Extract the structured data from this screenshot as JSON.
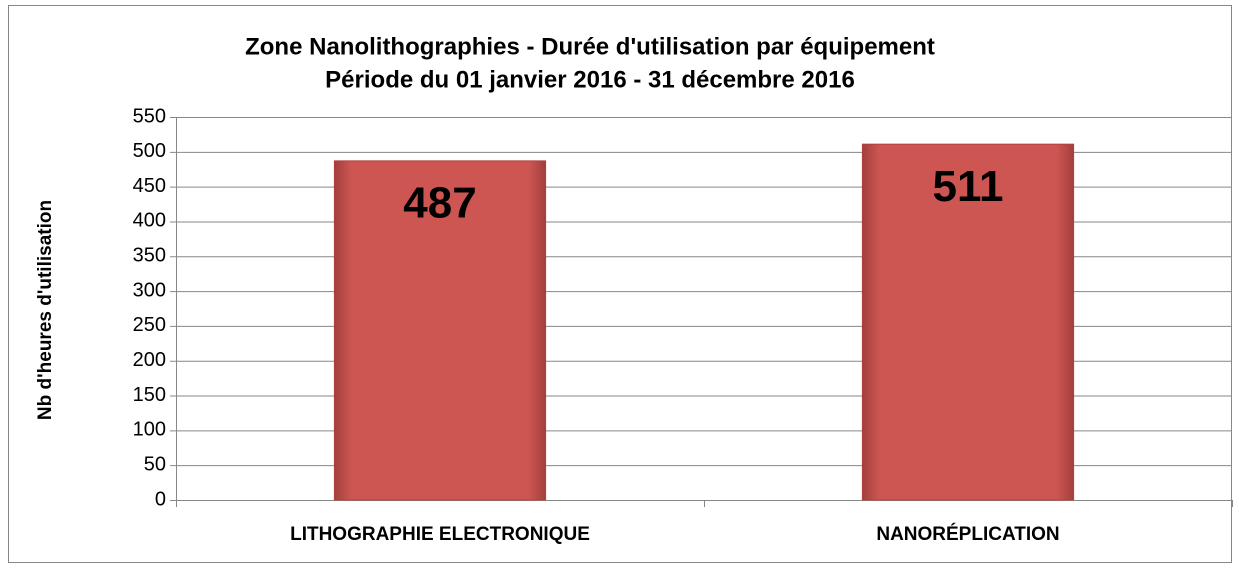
{
  "chart_data": {
    "type": "bar",
    "title": "Zone Nanolithographies - Durée d'utilisation par équipement",
    "subtitle": "Période du 01 janvier 2016 -  31 décembre 2016",
    "y_label": "Nb d'heures d'utilisation",
    "categories": [
      "LITHOGRAPHIE ELECTRONIQUE",
      "NANORÉPLICATION"
    ],
    "values": [
      487,
      511
    ],
    "color": "#c0504d",
    "ylim": [
      0,
      550
    ],
    "yticks": [
      0,
      50,
      100,
      150,
      200,
      250,
      300,
      350,
      400,
      450,
      500,
      550
    ],
    "grid": true
  }
}
